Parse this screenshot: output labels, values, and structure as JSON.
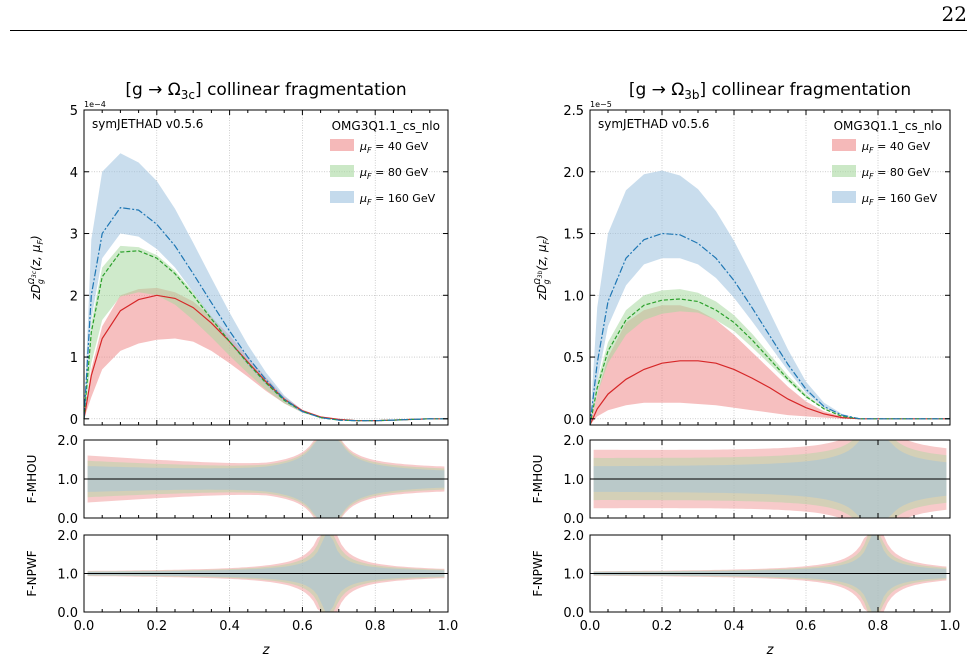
{
  "page": {
    "number": "22"
  },
  "panels": [
    {
      "title_prefix": "[g → Ω",
      "title_sub": "3c",
      "title_suffix": "] collinear fragmentation",
      "exponent_label": "1e−4",
      "watermark": "symJETHAD v0.5.6",
      "ylabel": "zD_g^{Ω_3c}(z, μ_F)",
      "ylabel_parts": {
        "main": "zD",
        "sub": "g",
        "sup": "Ω",
        "supsub": "3c",
        "tail": "(z, μ",
        "tailsub": "F",
        "end": ")"
      },
      "ratio_labels": [
        "F-MHOU",
        "F-NPWF"
      ],
      "xlabel": "z"
    },
    {
      "title_prefix": "[g → Ω",
      "title_sub": "3b",
      "title_suffix": "] collinear fragmentation",
      "exponent_label": "1e−5",
      "watermark": "symJETHAD v0.5.6",
      "ylabel": "zD_g^{Ω_3b}(z, μ_F)",
      "ylabel_parts": {
        "main": "zD",
        "sub": "g",
        "sup": "Ω",
        "supsub": "3b",
        "tail": "(z, μ",
        "tailsub": "F",
        "end": ")"
      },
      "ratio_labels": [
        "F-MHOU",
        "F-NPWF"
      ],
      "xlabel": "z"
    }
  ],
  "legend": {
    "title": "OMG3Q1.1_cs_nlo",
    "entries": [
      {
        "label": "μ_F = 40 GeV",
        "mu": "μ",
        "sub": "F",
        "rest": " = 40 GeV",
        "color": "#ee8a8a",
        "line": "#d62728",
        "dash": ""
      },
      {
        "label": "μ_F = 80 GeV",
        "mu": "μ",
        "sub": "F",
        "rest": " = 80 GeV",
        "color": "#a8d8a0",
        "line": "#2ca02c",
        "dash": "4,2"
      },
      {
        "label": "μ_F = 160 GeV",
        "mu": "μ",
        "sub": "F",
        "rest": " = 160 GeV",
        "color": "#9cc1df",
        "line": "#1f77b4",
        "dash": "7,2,2,2"
      }
    ]
  },
  "chart_data": [
    {
      "type": "area",
      "title": "[g → Ω_3c] collinear fragmentation",
      "xlabel": "z",
      "ylabel": "zD_g^{Ω_3c}(z, μ_F)",
      "y_scale_label": "1e−4",
      "xlim": [
        0,
        1
      ],
      "ylim": [
        -0.1,
        5
      ],
      "yticks": [
        0,
        1,
        2,
        3,
        4,
        5
      ],
      "xticks": [
        0.0,
        0.2,
        0.4,
        0.6,
        0.8,
        1.0
      ],
      "grid": true,
      "legend_position": "top-right",
      "x": [
        0.0,
        0.02,
        0.05,
        0.1,
        0.15,
        0.2,
        0.25,
        0.3,
        0.35,
        0.4,
        0.45,
        0.5,
        0.55,
        0.6,
        0.65,
        0.7,
        0.75,
        0.8,
        0.85,
        0.9,
        0.95,
        1.0
      ],
      "series": [
        {
          "name": "μ_F = 40 GeV",
          "central": [
            0.0,
            0.7,
            1.3,
            1.75,
            1.93,
            2.0,
            1.95,
            1.8,
            1.55,
            1.25,
            0.92,
            0.6,
            0.32,
            0.13,
            0.03,
            -0.01,
            -0.03,
            -0.03,
            -0.02,
            -0.01,
            0.0,
            0.0
          ],
          "lower": [
            0.0,
            0.35,
            0.8,
            1.1,
            1.22,
            1.28,
            1.3,
            1.25,
            1.1,
            0.9,
            0.68,
            0.45,
            0.25,
            0.1,
            0.02,
            -0.01,
            -0.03,
            -0.03,
            -0.02,
            -0.01,
            0.0,
            0.0
          ],
          "upper": [
            0.0,
            0.8,
            1.5,
            2.0,
            2.1,
            2.12,
            2.05,
            1.9,
            1.65,
            1.35,
            1.0,
            0.67,
            0.36,
            0.15,
            0.04,
            -0.01,
            -0.02,
            -0.02,
            -0.02,
            -0.01,
            0.0,
            0.0
          ]
        },
        {
          "name": "μ_F = 80 GeV",
          "central": [
            0.0,
            1.4,
            2.3,
            2.7,
            2.72,
            2.6,
            2.35,
            2.0,
            1.62,
            1.25,
            0.9,
            0.58,
            0.3,
            0.12,
            0.02,
            -0.02,
            -0.03,
            -0.03,
            -0.02,
            -0.01,
            0.0,
            0.0
          ],
          "lower": [
            0.0,
            0.9,
            1.6,
            1.98,
            2.05,
            2.0,
            1.85,
            1.6,
            1.32,
            1.02,
            0.74,
            0.47,
            0.25,
            0.1,
            0.02,
            -0.02,
            -0.03,
            -0.03,
            -0.02,
            -0.01,
            0.0,
            0.0
          ],
          "upper": [
            0.0,
            1.55,
            2.45,
            2.8,
            2.78,
            2.65,
            2.4,
            2.05,
            1.66,
            1.28,
            0.92,
            0.6,
            0.31,
            0.12,
            0.02,
            -0.02,
            -0.03,
            -0.03,
            -0.02,
            -0.01,
            0.0,
            0.0
          ]
        },
        {
          "name": "μ_F = 160 GeV",
          "central": [
            0.0,
            2.0,
            3.0,
            3.42,
            3.38,
            3.15,
            2.8,
            2.35,
            1.88,
            1.42,
            1.0,
            0.63,
            0.32,
            0.12,
            0.02,
            -0.02,
            -0.03,
            -0.03,
            -0.02,
            -0.01,
            0.0,
            0.0
          ],
          "lower": [
            0.0,
            1.6,
            2.6,
            3.0,
            2.95,
            2.75,
            2.45,
            2.05,
            1.63,
            1.23,
            0.87,
            0.55,
            0.28,
            0.1,
            0.02,
            -0.02,
            -0.03,
            -0.03,
            -0.02,
            -0.01,
            0.0,
            0.0
          ],
          "upper": [
            0.0,
            2.9,
            4.0,
            4.3,
            4.15,
            3.85,
            3.4,
            2.85,
            2.28,
            1.72,
            1.2,
            0.75,
            0.38,
            0.14,
            0.03,
            -0.01,
            -0.02,
            -0.02,
            -0.02,
            -0.01,
            0.0,
            0.0
          ]
        }
      ],
      "ratio_panels": [
        {
          "ylabel": "F-MHOU",
          "ylim": [
            0,
            2
          ],
          "yticks": [
            0.0,
            1.0,
            2.0
          ],
          "pole_at": 0.67
        },
        {
          "ylabel": "F-NPWF",
          "ylim": [
            0,
            2
          ],
          "yticks": [
            0.0,
            1.0,
            2.0
          ],
          "pole_at": 0.67
        }
      ]
    },
    {
      "type": "area",
      "title": "[g → Ω_3b] collinear fragmentation",
      "xlabel": "z",
      "ylabel": "zD_g^{Ω_3b}(z, μ_F)",
      "y_scale_label": "1e−5",
      "xlim": [
        0,
        1
      ],
      "ylim": [
        -0.05,
        2.5
      ],
      "yticks": [
        0.0,
        0.5,
        1.0,
        1.5,
        2.0,
        2.5
      ],
      "xticks": [
        0.0,
        0.2,
        0.4,
        0.6,
        0.8,
        1.0
      ],
      "grid": true,
      "legend_position": "top-right",
      "x": [
        0.0,
        0.02,
        0.05,
        0.1,
        0.15,
        0.2,
        0.25,
        0.3,
        0.35,
        0.4,
        0.45,
        0.5,
        0.55,
        0.6,
        0.65,
        0.7,
        0.75,
        0.8,
        0.85,
        0.9,
        0.95,
        1.0
      ],
      "series": [
        {
          "name": "μ_F = 40 GeV",
          "central": [
            -0.05,
            0.08,
            0.2,
            0.32,
            0.4,
            0.45,
            0.47,
            0.47,
            0.45,
            0.4,
            0.33,
            0.25,
            0.16,
            0.09,
            0.04,
            0.01,
            0.0,
            0.0,
            0.0,
            0.0,
            0.0,
            0.0
          ],
          "lower": [
            -0.05,
            0.02,
            0.07,
            0.11,
            0.13,
            0.13,
            0.13,
            0.12,
            0.11,
            0.09,
            0.07,
            0.05,
            0.03,
            0.02,
            0.01,
            0.0,
            0.0,
            0.0,
            0.0,
            0.0,
            0.0,
            0.0
          ],
          "upper": [
            -0.05,
            0.2,
            0.5,
            0.78,
            0.88,
            0.92,
            0.92,
            0.88,
            0.8,
            0.68,
            0.54,
            0.4,
            0.26,
            0.14,
            0.06,
            0.02,
            0.0,
            0.0,
            0.0,
            0.0,
            0.0,
            0.0
          ]
        },
        {
          "name": "μ_F = 80 GeV",
          "central": [
            -0.05,
            0.25,
            0.55,
            0.8,
            0.92,
            0.96,
            0.97,
            0.95,
            0.88,
            0.78,
            0.64,
            0.48,
            0.32,
            0.18,
            0.08,
            0.02,
            0.0,
            0.0,
            0.0,
            0.0,
            0.0,
            0.0
          ],
          "lower": [
            -0.05,
            0.2,
            0.45,
            0.68,
            0.8,
            0.85,
            0.87,
            0.86,
            0.8,
            0.71,
            0.58,
            0.44,
            0.3,
            0.17,
            0.08,
            0.02,
            0.0,
            0.0,
            0.0,
            0.0,
            0.0,
            0.0
          ],
          "upper": [
            -0.05,
            0.3,
            0.62,
            0.88,
            1.0,
            1.04,
            1.05,
            1.02,
            0.95,
            0.84,
            0.69,
            0.52,
            0.35,
            0.2,
            0.09,
            0.03,
            0.0,
            0.0,
            0.0,
            0.0,
            0.0,
            0.0
          ]
        },
        {
          "name": "μ_F = 160 GeV",
          "central": [
            -0.05,
            0.45,
            0.95,
            1.3,
            1.45,
            1.5,
            1.49,
            1.42,
            1.3,
            1.12,
            0.9,
            0.67,
            0.44,
            0.24,
            0.1,
            0.03,
            0.0,
            0.0,
            0.0,
            0.0,
            0.0,
            0.0
          ],
          "lower": [
            -0.05,
            0.3,
            0.75,
            1.08,
            1.25,
            1.3,
            1.3,
            1.25,
            1.14,
            0.98,
            0.79,
            0.59,
            0.39,
            0.21,
            0.09,
            0.03,
            0.0,
            0.0,
            0.0,
            0.0,
            0.0,
            0.0
          ],
          "upper": [
            -0.05,
            0.9,
            1.5,
            1.85,
            1.98,
            2.01,
            1.97,
            1.86,
            1.68,
            1.44,
            1.16,
            0.86,
            0.56,
            0.3,
            0.13,
            0.04,
            0.0,
            0.0,
            0.0,
            0.0,
            0.0,
            0.0
          ]
        }
      ],
      "ratio_panels": [
        {
          "ylabel": "F-MHOU",
          "ylim": [
            0,
            2
          ],
          "yticks": [
            0.0,
            1.0,
            2.0
          ],
          "pole_at": 0.79
        },
        {
          "ylabel": "F-NPWF",
          "ylim": [
            0,
            2
          ],
          "yticks": [
            0.0,
            1.0,
            2.0
          ],
          "pole_at": 0.79
        }
      ]
    }
  ]
}
